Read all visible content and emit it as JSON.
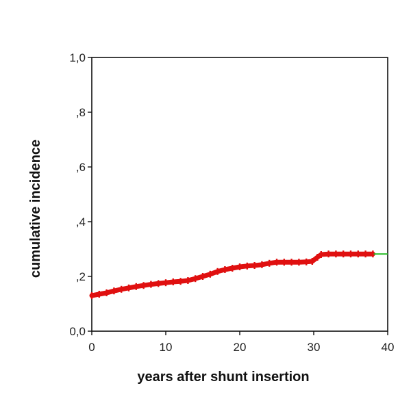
{
  "chart_data": {
    "type": "line",
    "title": "",
    "xlabel": "years after shunt insertion",
    "ylabel": "cumulative incidence",
    "xlim": [
      0,
      40
    ],
    "ylim": [
      0,
      1
    ],
    "xticks": [
      {
        "value": 0,
        "label": "0"
      },
      {
        "value": 10,
        "label": "10"
      },
      {
        "value": 20,
        "label": "20"
      },
      {
        "value": 30,
        "label": "30"
      },
      {
        "value": 40,
        "label": "40"
      }
    ],
    "yticks": [
      {
        "value": 0,
        "label": "0,0"
      },
      {
        "value": 0.2,
        "label": ",2"
      },
      {
        "value": 0.4,
        "label": ",4"
      },
      {
        "value": 0.6,
        "label": ",6"
      },
      {
        "value": 0.8,
        "label": ",8"
      },
      {
        "value": 1.0,
        "label": "1,0"
      }
    ],
    "grid": false,
    "colors": {
      "curve": "#e01010",
      "censored": "#e01010",
      "tail": "#22bb22",
      "axis": "#111111"
    },
    "series": [
      {
        "x": [
          0,
          1,
          2,
          3,
          4,
          5,
          6,
          7,
          8,
          9,
          10,
          11,
          12,
          13,
          14,
          15,
          16,
          17,
          18,
          19,
          20,
          21,
          22,
          23,
          24,
          25,
          26,
          27,
          28,
          29,
          29.8,
          30.5,
          31,
          32,
          33,
          34,
          35,
          36,
          37,
          38,
          40
        ],
        "y": [
          0.13,
          0.135,
          0.14,
          0.147,
          0.153,
          0.158,
          0.163,
          0.167,
          0.171,
          0.174,
          0.177,
          0.18,
          0.182,
          0.185,
          0.192,
          0.2,
          0.208,
          0.218,
          0.225,
          0.23,
          0.235,
          0.238,
          0.24,
          0.243,
          0.248,
          0.252,
          0.252,
          0.252,
          0.252,
          0.253,
          0.255,
          0.27,
          0.28,
          0.282,
          0.282,
          0.282,
          0.282,
          0.282,
          0.282,
          0.282,
          0.282
        ]
      }
    ]
  }
}
